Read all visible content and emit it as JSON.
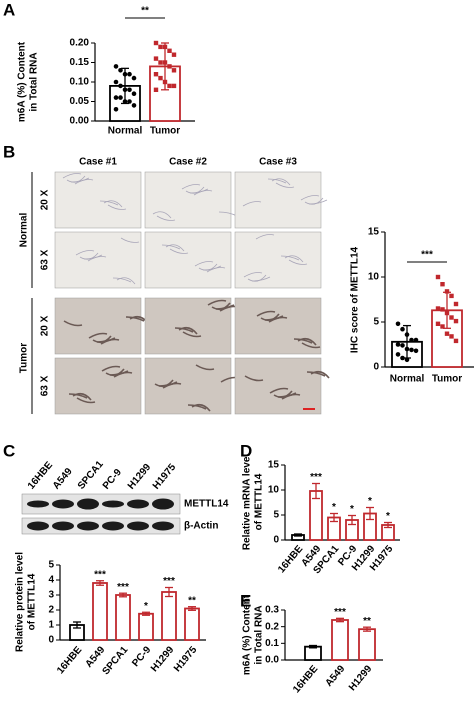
{
  "panel_labels": [
    "A",
    "B",
    "C",
    "D",
    "E"
  ],
  "ihc_images": {
    "columns": [
      "Case #1",
      "Case #2",
      "Case #3"
    ],
    "rows": [
      "20 X",
      "63 X",
      "20 X",
      "63 X"
    ],
    "groups": [
      "Normal",
      "Tumor"
    ]
  },
  "western_blot": {
    "lanes": [
      "16HBE",
      "A549",
      "SPCA1",
      "PC-9",
      "H1299",
      "H1975"
    ],
    "bands": [
      "METTL14",
      "β-Actin"
    ]
  },
  "chart_data": [
    {
      "type": "bar",
      "ylabel": [
        "m6A (%) Content",
        "in Total RNA"
      ],
      "categories": [
        "Normal",
        "Tumor"
      ],
      "values": [
        0.09,
        0.14
      ],
      "errors": [
        0.045,
        0.06
      ],
      "colors": [
        "#000000",
        "#c0282d"
      ],
      "points": [
        [
          0.14,
          0.13,
          0.12,
          0.12,
          0.11,
          0.1,
          0.09,
          0.08,
          0.08,
          0.07,
          0.06,
          0.06,
          0.05,
          0.05,
          0.04,
          0.03
        ],
        [
          0.2,
          0.19,
          0.19,
          0.18,
          0.17,
          0.16,
          0.15,
          0.15,
          0.14,
          0.13,
          0.12,
          0.11,
          0.1,
          0.09,
          0.09,
          0.08
        ]
      ],
      "bracket_label": "**",
      "ylim": [
        0,
        0.2
      ],
      "yticks": [
        {
          "value": 0,
          "label": "0.00"
        },
        0.05,
        {
          "value": 0.1,
          "label": "0.10"
        },
        0.15,
        {
          "value": 0.2,
          "label": "0.20"
        }
      ]
    },
    {
      "type": "bar",
      "ylabel": [
        "IHC score of METTL14"
      ],
      "categories": [
        "Normal",
        "Tumor"
      ],
      "values": [
        2.8,
        6.3
      ],
      "errors": [
        1.8,
        2.0
      ],
      "colors": [
        "#000000",
        "#c0282d"
      ],
      "points": [
        [
          4.8,
          4.2,
          3.6,
          3.0,
          3.0,
          2.5,
          2.4,
          2.0,
          1.9,
          1.8,
          1.4,
          1.0,
          0.8
        ],
        [
          10,
          9.2,
          8.4,
          7.9,
          7.0,
          6.5,
          6.4,
          6.0,
          5.5,
          5.1,
          4.8,
          4.5,
          3.7,
          3.4,
          2.9
        ]
      ],
      "bracket_label": "***",
      "ylim": [
        0,
        15
      ],
      "yticks": [
        0,
        5,
        10,
        15
      ]
    },
    {
      "type": "bar",
      "ylabel": [
        "Relative protein level",
        "of METTL14"
      ],
      "categories": [
        "16HBE",
        "A549",
        "SPCA1",
        "PC-9",
        "H1299",
        "H1975"
      ],
      "values": [
        1.0,
        3.8,
        3.0,
        1.75,
        3.2,
        2.1
      ],
      "errors": [
        0.2,
        0.15,
        0.12,
        0.1,
        0.3,
        0.12
      ],
      "colors": [
        "#000000",
        "#c0282d",
        "#c0282d",
        "#c0282d",
        "#c0282d",
        "#c0282d"
      ],
      "value_annotations": [
        null,
        "***",
        "***",
        "*",
        "***",
        "**"
      ],
      "ylim": [
        0,
        5
      ],
      "yticks": [
        0,
        1,
        2,
        3,
        4,
        5
      ]
    },
    {
      "type": "bar",
      "ylabel": [
        "Relative mRNA level",
        "of METTL14"
      ],
      "categories": [
        "16HBE",
        "A549",
        "SPCA1",
        "PC-9",
        "H1299",
        "H1975"
      ],
      "values": [
        1.0,
        9.8,
        4.5,
        4.0,
        5.3,
        3.0
      ],
      "errors": [
        0.2,
        1.5,
        0.8,
        0.9,
        1.2,
        0.5
      ],
      "colors": [
        "#000000",
        "#c0282d",
        "#c0282d",
        "#c0282d",
        "#c0282d",
        "#c0282d"
      ],
      "value_annotations": [
        null,
        "***",
        "*",
        "*",
        "*",
        "*"
      ],
      "ylim": [
        0,
        15
      ],
      "yticks": [
        0,
        5,
        10,
        15
      ]
    },
    {
      "type": "bar",
      "ylabel": [
        "m6A (%) Content",
        "in Total RNA"
      ],
      "categories": [
        "16HBE",
        "A549",
        "H1299"
      ],
      "values": [
        0.08,
        0.24,
        0.185
      ],
      "errors": [
        0.007,
        0.01,
        0.012
      ],
      "colors": [
        "#000000",
        "#c0282d",
        "#c0282d"
      ],
      "value_annotations": [
        null,
        "***",
        "**"
      ],
      "ylim": [
        0,
        0.3
      ],
      "yticks": [
        {
          "value": 0,
          "label": "0.0"
        },
        0.1,
        0.2,
        0.3
      ]
    }
  ]
}
